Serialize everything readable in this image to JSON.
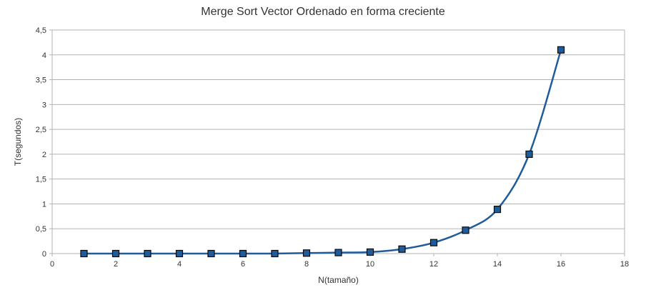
{
  "chart_data": {
    "type": "line",
    "title": "Merge Sort Vector Ordenado en forma creciente",
    "xlabel": "N(tamaño)",
    "ylabel": "T(segundos)",
    "xlim": [
      0,
      18
    ],
    "ylim": [
      0,
      4.5
    ],
    "x_ticks": [
      0,
      2,
      4,
      6,
      8,
      10,
      12,
      14,
      16,
      18
    ],
    "x_tick_labels": [
      "0",
      "2",
      "4",
      "6",
      "8",
      "10",
      "12",
      "14",
      "16",
      "18"
    ],
    "y_ticks": [
      0,
      0.5,
      1,
      1.5,
      2,
      2.5,
      3,
      3.5,
      4,
      4.5
    ],
    "y_tick_labels": [
      "0",
      "0,5",
      "1",
      "1,5",
      "2",
      "2,5",
      "3",
      "3,5",
      "4",
      "4,5"
    ],
    "grid": "horizontal",
    "legend": "none",
    "line_color": "#1f5c99",
    "marker_color": "#1f5c99",
    "series": [
      {
        "x": [
          1,
          2,
          3,
          4,
          5,
          6,
          7,
          8,
          9,
          10,
          11,
          12,
          13,
          14,
          15,
          16
        ],
        "values": [
          0,
          0,
          0,
          0,
          0,
          0,
          0,
          0.01,
          0.02,
          0.03,
          0.09,
          0.22,
          0.47,
          0.89,
          2.0,
          4.1
        ]
      }
    ]
  }
}
